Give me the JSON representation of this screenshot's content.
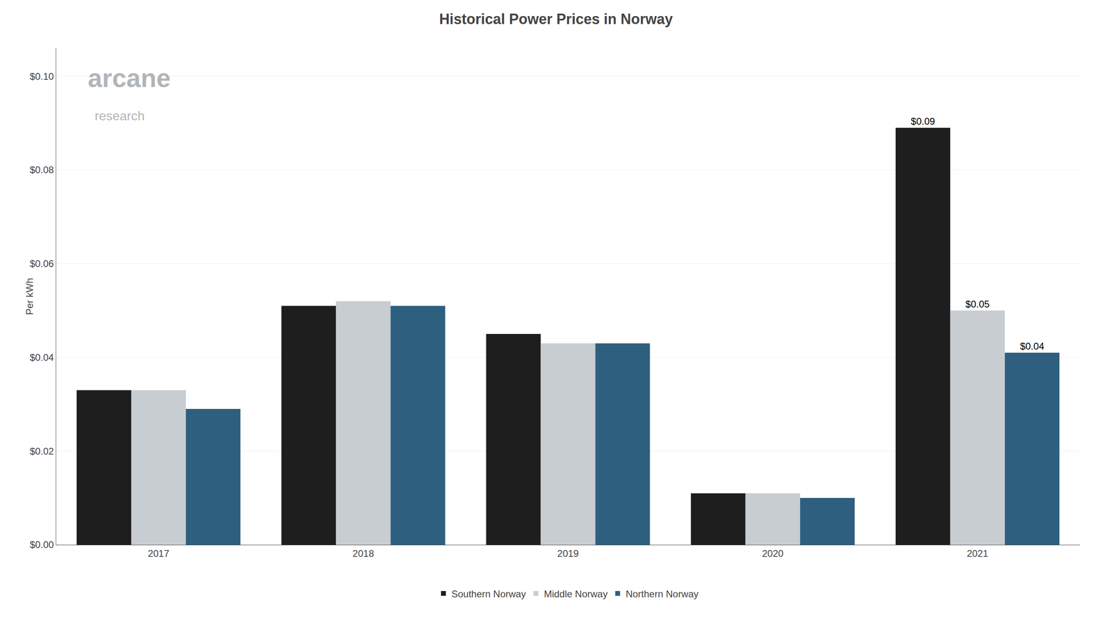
{
  "chart_data": {
    "type": "bar",
    "title": "Historical Power Prices in Norway",
    "y_label": "Per kWh",
    "categories": [
      "2017",
      "2018",
      "2019",
      "2020",
      "2021"
    ],
    "series": [
      {
        "name": "Southern Norway",
        "color": "#1e1e1e",
        "values": [
          0.033,
          0.051,
          0.045,
          0.011,
          0.089
        ],
        "value_labels": [
          null,
          null,
          null,
          null,
          "$0.09"
        ]
      },
      {
        "name": "Middle Norway",
        "color": "#c8cdd1",
        "values": [
          0.033,
          0.052,
          0.043,
          0.011,
          0.05
        ],
        "value_labels": [
          null,
          null,
          null,
          null,
          "$0.05"
        ]
      },
      {
        "name": "Northern Norway",
        "color": "#2e5f7e",
        "values": [
          0.029,
          0.051,
          0.043,
          0.01,
          0.041
        ],
        "value_labels": [
          null,
          null,
          null,
          null,
          "$0.04"
        ]
      }
    ],
    "ylim": [
      0,
      0.106
    ],
    "yticks": [
      {
        "value": 0.0,
        "label": "$0.00"
      },
      {
        "value": 0.02,
        "label": "$0.02"
      },
      {
        "value": 0.04,
        "label": "$0.04"
      },
      {
        "value": 0.06,
        "label": "$0.06"
      },
      {
        "value": 0.08,
        "label": "$0.08"
      },
      {
        "value": 0.1,
        "label": "$0.10"
      }
    ],
    "grid": true,
    "legend": "bottom",
    "data_labels": true,
    "annotations": [
      {
        "text": "arcane",
        "color": "#b0b5ba"
      },
      {
        "text": "research",
        "color": "#b0b5ba"
      }
    ]
  }
}
